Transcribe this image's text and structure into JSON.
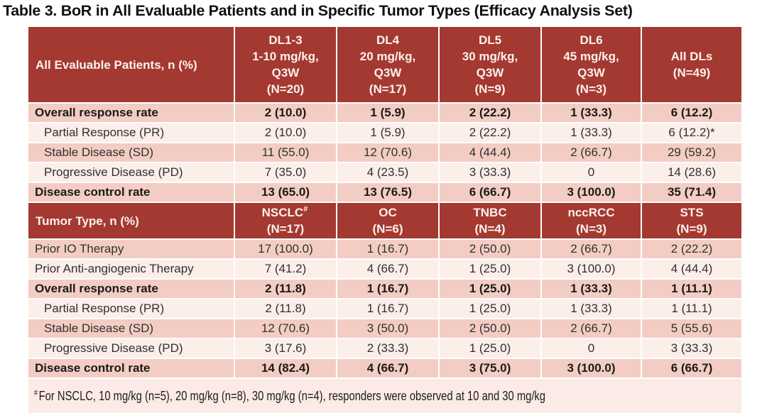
{
  "title": "Table 3. BoR in All Evaluable Patients and in Specific Tumor Types (Efficacy Analysis Set)",
  "colors": {
    "header_bg": "#A43931",
    "header_text": "#FCF1ED",
    "row_medium": "#F3CDC3",
    "row_light": "#FCEEE9",
    "footnote_bg": "#FBEAE5",
    "separator": "#FFFFFF"
  },
  "sections": [
    {
      "header_label": "All Evaluable Patients, n (%)",
      "columns": [
        {
          "lines": [
            "DL1-3",
            "1-10 mg/kg,",
            "Q3W",
            "(N=20)"
          ]
        },
        {
          "lines": [
            "DL4",
            "20 mg/kg,",
            "Q3W",
            "(N=17)"
          ]
        },
        {
          "lines": [
            "DL5",
            "30 mg/kg,",
            "Q3W",
            "(N=9)"
          ]
        },
        {
          "lines": [
            "DL6",
            "45 mg/kg,",
            "Q3W",
            "(N=3)"
          ]
        },
        {
          "lines": [
            "All DLs",
            "(N=49)"
          ]
        }
      ],
      "rows": [
        {
          "label": "Overall response rate",
          "bold": true,
          "indent": false,
          "shade": "medium",
          "values": [
            "2 (10.0)",
            "1 (5.9)",
            "2 (22.2)",
            "1 (33.3)",
            "6 (12.2)"
          ]
        },
        {
          "label": "Partial Response (PR)",
          "bold": false,
          "indent": true,
          "shade": "light",
          "values": [
            "2 (10.0)",
            "1 (5.9)",
            "2 (22.2)",
            "1 (33.3)",
            "6 (12.2)*"
          ]
        },
        {
          "label": "Stable Disease (SD)",
          "bold": false,
          "indent": true,
          "shade": "medium",
          "values": [
            "11 (55.0)",
            "12 (70.6)",
            "4 (44.4)",
            "2 (66.7)",
            "29 (59.2)"
          ]
        },
        {
          "label": "Progressive Disease (PD)",
          "bold": false,
          "indent": true,
          "shade": "light",
          "values": [
            "7 (35.0)",
            "4 (23.5)",
            "3 (33.3)",
            "0",
            "14 (28.6)"
          ]
        },
        {
          "label": "Disease control rate",
          "bold": true,
          "indent": false,
          "shade": "medium",
          "values": [
            "13 (65.0)",
            "13 (76.5)",
            "6 (66.7)",
            "3 (100.0)",
            "35 (71.4)"
          ]
        }
      ]
    },
    {
      "header_label": "Tumor Type, n (%)",
      "columns": [
        {
          "lines": [
            "NSCLC",
            "(N=17)"
          ],
          "sup": "#"
        },
        {
          "lines": [
            "OC",
            "(N=6)"
          ]
        },
        {
          "lines": [
            "TNBC",
            "(N=4)"
          ]
        },
        {
          "lines": [
            "nccRCC",
            "(N=3)"
          ]
        },
        {
          "lines": [
            "STS",
            "(N=9)"
          ]
        }
      ],
      "rows": [
        {
          "label": "Prior IO Therapy",
          "bold": false,
          "indent": false,
          "shade": "medium",
          "values": [
            "17 (100.0)",
            "1 (16.7)",
            "2 (50.0)",
            "2 (66.7)",
            "2 (22.2)"
          ]
        },
        {
          "label": "Prior Anti-angiogenic Therapy",
          "bold": false,
          "indent": false,
          "shade": "light",
          "values": [
            "7 (41.2)",
            "4 (66.7)",
            "1 (25.0)",
            "3 (100.0)",
            "4 (44.4)"
          ]
        },
        {
          "label": "Overall response rate",
          "bold": true,
          "indent": false,
          "shade": "medium",
          "values": [
            "2 (11.8)",
            "1 (16.7)",
            "1 (25.0)",
            "1 (33.3)",
            "1 (11.1)"
          ]
        },
        {
          "label": "Partial Response (PR)",
          "bold": false,
          "indent": true,
          "shade": "light",
          "values": [
            "2 (11.8)",
            "1 (16.7)",
            "1 (25.0)",
            "1 (33.3)",
            "1 (11.1)"
          ]
        },
        {
          "label": "Stable Disease (SD)",
          "bold": false,
          "indent": true,
          "shade": "medium",
          "values": [
            "12 (70.6)",
            "3 (50.0)",
            "2 (50.0)",
            "2 (66.7)",
            "5 (55.6)"
          ]
        },
        {
          "label": "Progressive Disease (PD)",
          "bold": false,
          "indent": true,
          "shade": "light",
          "values": [
            "3 (17.6)",
            "2 (33.3)",
            "1 (25.0)",
            "0",
            "3 (33.3)"
          ]
        },
        {
          "label": "Disease control rate",
          "bold": true,
          "indent": false,
          "shade": "medium",
          "values": [
            "14 (82.4)",
            "4 (66.7)",
            "3 (75.0)",
            "3 (100.0)",
            "6 (66.7)"
          ]
        }
      ]
    }
  ],
  "footnote": {
    "marker": "#",
    "text": "For NSCLC, 10 mg/kg (n=5), 20 mg/kg (n=8), 30 mg/kg (n=4), responders were observed at 10 and 30 mg/kg"
  }
}
